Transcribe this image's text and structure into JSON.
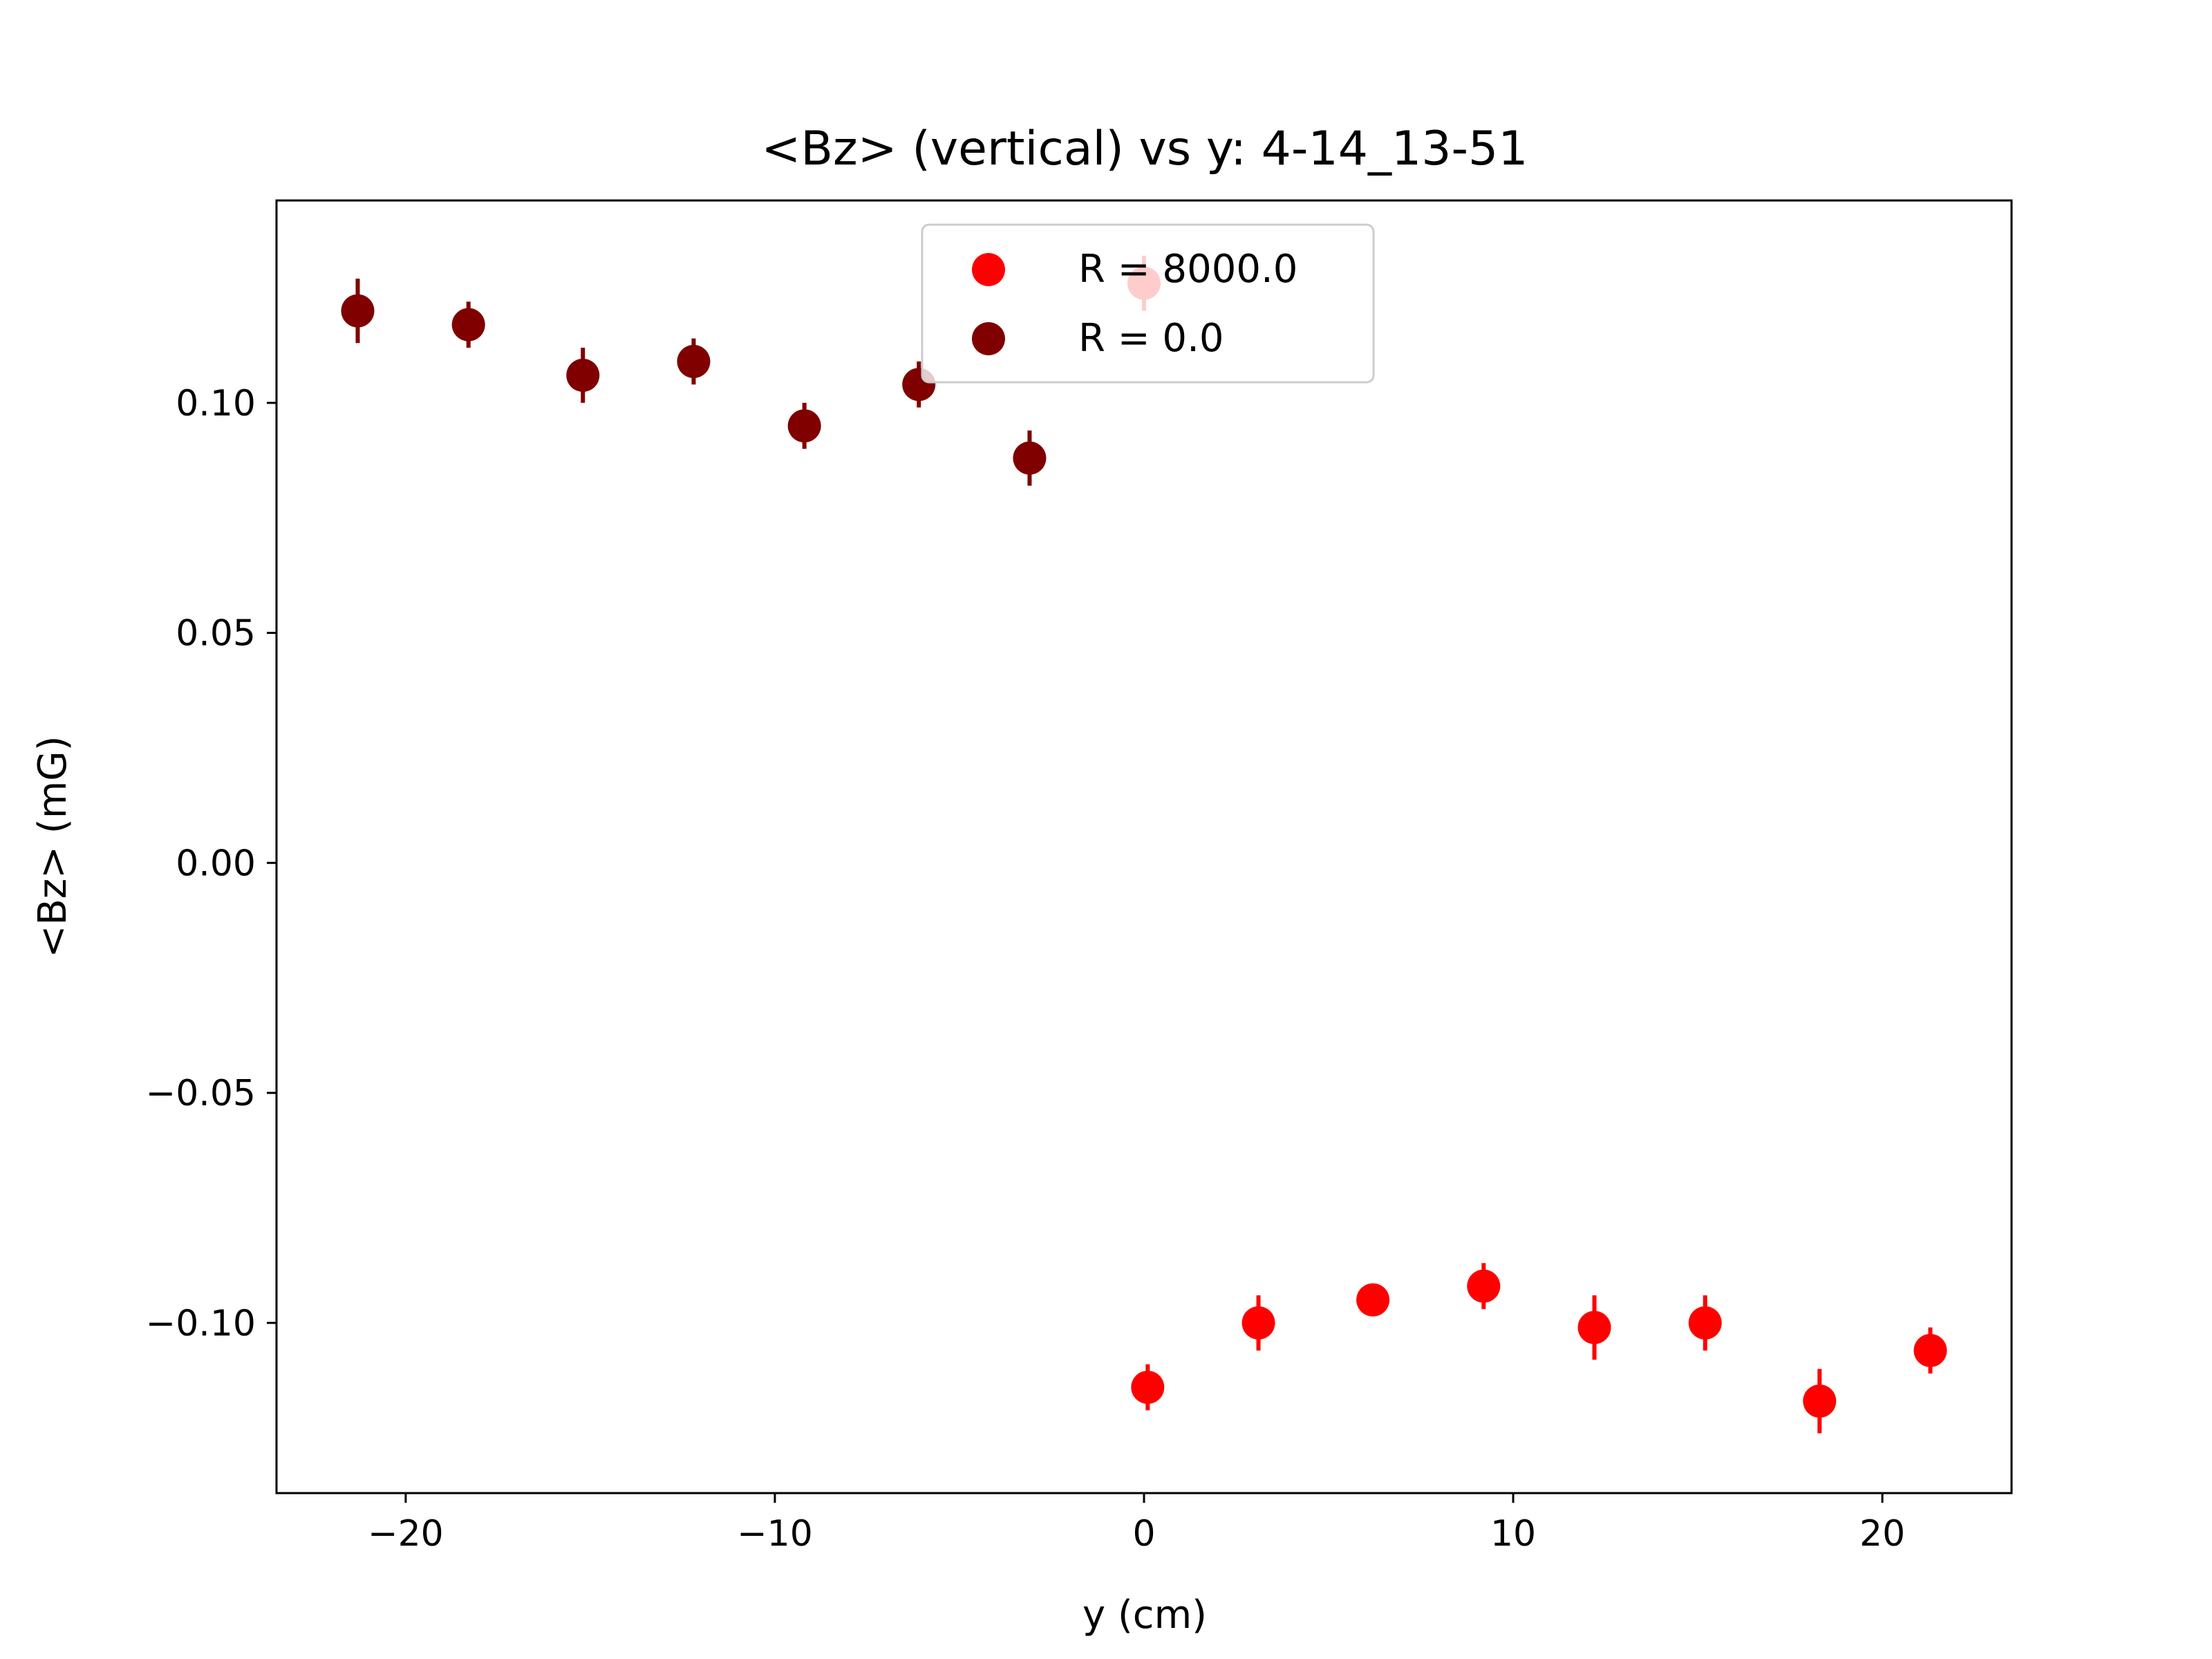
{
  "chart_data": {
    "type": "scatter",
    "title": "<Bz> (vertical) vs y: 4-14_13-51",
    "xlabel": "y (cm)",
    "ylabel": "<Bz> (mG)",
    "xlim": [
      -23.5,
      23.5
    ],
    "ylim": [
      -0.137,
      0.144
    ],
    "xticks": [
      -20,
      -10,
      0,
      10,
      20
    ],
    "xtick_labels": [
      "−20",
      "−10",
      "0",
      "10",
      "20"
    ],
    "yticks": [
      0.1,
      0.05,
      0.0,
      -0.05,
      -0.1
    ],
    "ytick_labels": [
      "0.10",
      "0.05",
      "0.00",
      "−0.05",
      "−0.10"
    ],
    "grid": false,
    "legend_position": "top-center",
    "series": [
      {
        "name": "R = 8000.0",
        "color": "#ff0000",
        "points": [
          {
            "x": 0.0,
            "y": 0.126,
            "err": 0.006
          },
          {
            "x": 0.1,
            "y": -0.114,
            "err": 0.005
          },
          {
            "x": 3.1,
            "y": -0.1,
            "err": 0.006
          },
          {
            "x": 6.2,
            "y": -0.095,
            "err": 0.003
          },
          {
            "x": 9.2,
            "y": -0.092,
            "err": 0.005
          },
          {
            "x": 12.2,
            "y": -0.101,
            "err": 0.007
          },
          {
            "x": 15.2,
            "y": -0.1,
            "err": 0.006
          },
          {
            "x": 18.3,
            "y": -0.117,
            "err": 0.007
          },
          {
            "x": 21.3,
            "y": -0.106,
            "err": 0.005
          }
        ]
      },
      {
        "name": "R = 0.0",
        "color": "#800000",
        "points": [
          {
            "x": -21.3,
            "y": 0.12,
            "err": 0.007
          },
          {
            "x": -18.3,
            "y": 0.117,
            "err": 0.005
          },
          {
            "x": -15.2,
            "y": 0.106,
            "err": 0.006
          },
          {
            "x": -12.2,
            "y": 0.109,
            "err": 0.005
          },
          {
            "x": -9.2,
            "y": 0.095,
            "err": 0.005
          },
          {
            "x": -6.1,
            "y": 0.104,
            "err": 0.005
          },
          {
            "x": -3.1,
            "y": 0.088,
            "err": 0.006
          }
        ]
      }
    ]
  }
}
